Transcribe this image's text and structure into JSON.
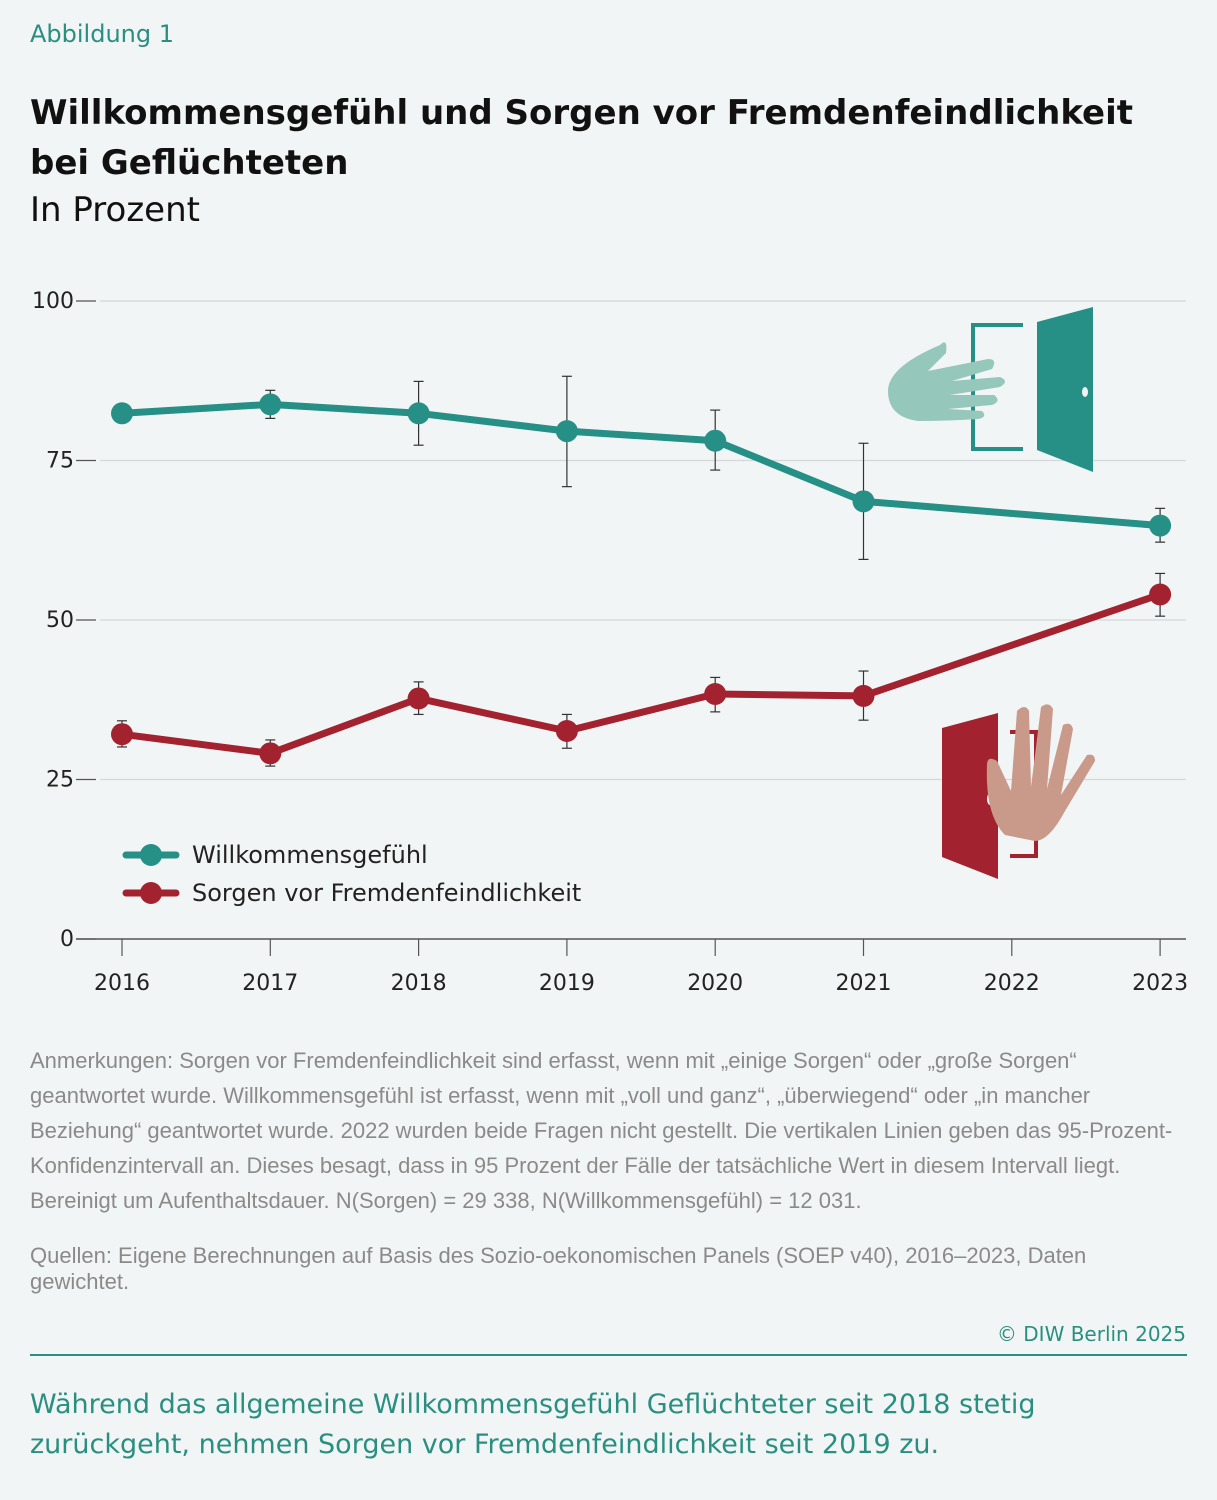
{
  "figure_label": "Abbildung 1",
  "title": "Willkommensgefühl und Sorgen vor Fremdenfeindlichkeit bei Geflüchteten",
  "subtitle": "In Prozent",
  "chart_data": {
    "type": "line",
    "x": [
      2016,
      2017,
      2018,
      2019,
      2020,
      2021,
      2023
    ],
    "x_ticks": [
      "2016",
      "2017",
      "2018",
      "2019",
      "2020",
      "2021",
      "2022",
      "2023"
    ],
    "y_ticks": [
      "0",
      "25",
      "50",
      "75",
      "100"
    ],
    "ylim": [
      0,
      100
    ],
    "grid": true,
    "legend_position": "bottom-left",
    "series": [
      {
        "name": "Willkommensgefühl",
        "color": "#268f86",
        "values": [
          82.4,
          83.8,
          82.4,
          79.6,
          78.1,
          68.6,
          64.8
        ],
        "ci_low": [
          81.5,
          81.6,
          77.4,
          70.9,
          73.5,
          59.5,
          62.2
        ],
        "ci_high": [
          83.3,
          86.0,
          87.4,
          88.2,
          82.9,
          77.7,
          67.5
        ]
      },
      {
        "name": "Sorgen vor Fremdenfeindlichkeit",
        "color": "#a3222f",
        "values": [
          32.1,
          29.1,
          37.7,
          32.6,
          38.4,
          38.1,
          54.0
        ],
        "ci_low": [
          30.1,
          27.1,
          35.2,
          29.9,
          35.6,
          34.3,
          50.6
        ],
        "ci_high": [
          34.2,
          31.2,
          40.3,
          35.2,
          41.0,
          42.0,
          57.3
        ]
      }
    ]
  },
  "notes": "Anmerkungen: Sorgen vor Fremdenfeindlichkeit sind erfasst, wenn mit „einige Sorgen“ oder „große Sorgen“ geantwortet wurde. Willkommensgefühl ist erfasst, wenn mit „voll und ganz“, „überwiegend“ oder „in mancher Beziehung“ geantwortet wurde. 2022 wurden beide Fragen nicht gestellt. Die vertikalen Linien geben das 95-Prozent-Konfidenzintervall an. Dieses besagt, dass in 95 Prozent der Fälle der tatsächliche Wert in diesem Intervall liegt. Bereinigt um Aufenthaltsdauer. N(Sorgen) = 29 338, N(Willkommensgefühl) = 12 031.",
  "sources": "Quellen: Eigene Berechnungen auf Basis des Sozio-oekonomischen Panels (SOEP v40), 2016–2023, Daten gewichtet.",
  "copyright": "© DIW Berlin 2025",
  "summary": "Während das allgemeine Willkommensgefühl Geflüchteter seit 2018 stetig zurückgeht, nehmen Sorgen vor Fremdenfeindlichkeit seit 2019 zu."
}
